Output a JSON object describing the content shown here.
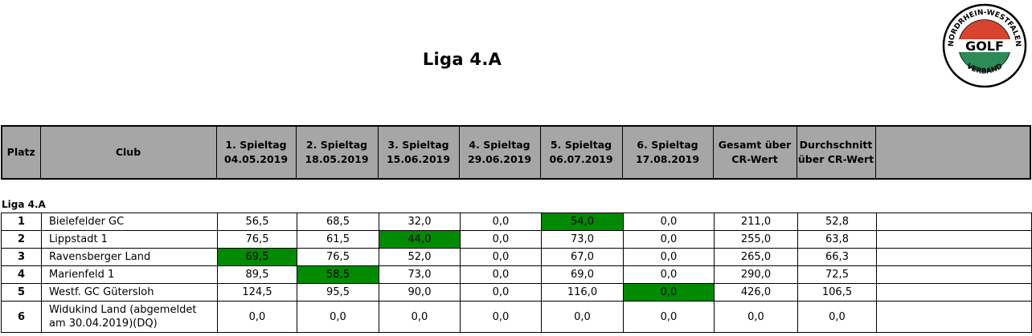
{
  "title": "Liga 4.A",
  "logo": {
    "ring_top": "NORDRHEIN-WESTFALEN",
    "ring_bottom": "VERBAND",
    "center": "GOLF",
    "colors": {
      "red": "#d9442f",
      "green": "#2e8b57"
    }
  },
  "header": {
    "platz": "Platz",
    "club": "Club",
    "spieltage": [
      {
        "label": "1. Spieltag",
        "date": "04.05.2019"
      },
      {
        "label": "2. Spieltag",
        "date": "18.05.2019"
      },
      {
        "label": "3. Spieltag",
        "date": "15.06.2019"
      },
      {
        "label": "4. Spieltag",
        "date": "29.06.2019"
      },
      {
        "label": "5. Spieltag",
        "date": "06.07.2019"
      },
      {
        "label": "6. Spieltag",
        "date": "17.08.2019"
      }
    ],
    "gesamt": [
      "Gesamt über",
      "CR-Wert"
    ],
    "durchschnitt": [
      "Durchschnitt",
      "über CR-Wert"
    ]
  },
  "group_label": "Liga 4.A",
  "highlight_color": "#028a02",
  "rows": [
    {
      "platz": "1",
      "club": "Bielefelder GC",
      "scores": [
        "56,5",
        "68,5",
        "32,0",
        "0,0",
        "54,0",
        "0,0"
      ],
      "best": 4,
      "gesamt": "211,0",
      "durchschnitt": "52,8"
    },
    {
      "platz": "2",
      "club": "Lippstadt 1",
      "scores": [
        "76,5",
        "61,5",
        "44,0",
        "0,0",
        "73,0",
        "0,0"
      ],
      "best": 2,
      "gesamt": "255,0",
      "durchschnitt": "63,8"
    },
    {
      "platz": "3",
      "club": "Ravensberger Land",
      "scores": [
        "69,5",
        "76,5",
        "52,0",
        "0,0",
        "67,0",
        "0,0"
      ],
      "best": 0,
      "gesamt": "265,0",
      "durchschnitt": "66,3"
    },
    {
      "platz": "4",
      "club": "Marienfeld 1",
      "scores": [
        "89,5",
        "58,5",
        "73,0",
        "0,0",
        "69,0",
        "0,0"
      ],
      "best": 1,
      "gesamt": "290,0",
      "durchschnitt": "72,5"
    },
    {
      "platz": "5",
      "club": "Westf. GC Gütersloh",
      "scores": [
        "124,5",
        "95,5",
        "90,0",
        "0,0",
        "116,0",
        "0,0"
      ],
      "best": 5,
      "gesamt": "426,0",
      "durchschnitt": "106,5"
    },
    {
      "platz": "6",
      "club_lines": [
        "Widukind Land  (abgemeldet",
        "am 30.04.2019)(DQ)"
      ],
      "scores": [
        "0,0",
        "0,0",
        "0,0",
        "0,0",
        "0,0",
        "0,0"
      ],
      "best": null,
      "gesamt": "0,0",
      "durchschnitt": "0,0"
    }
  ]
}
